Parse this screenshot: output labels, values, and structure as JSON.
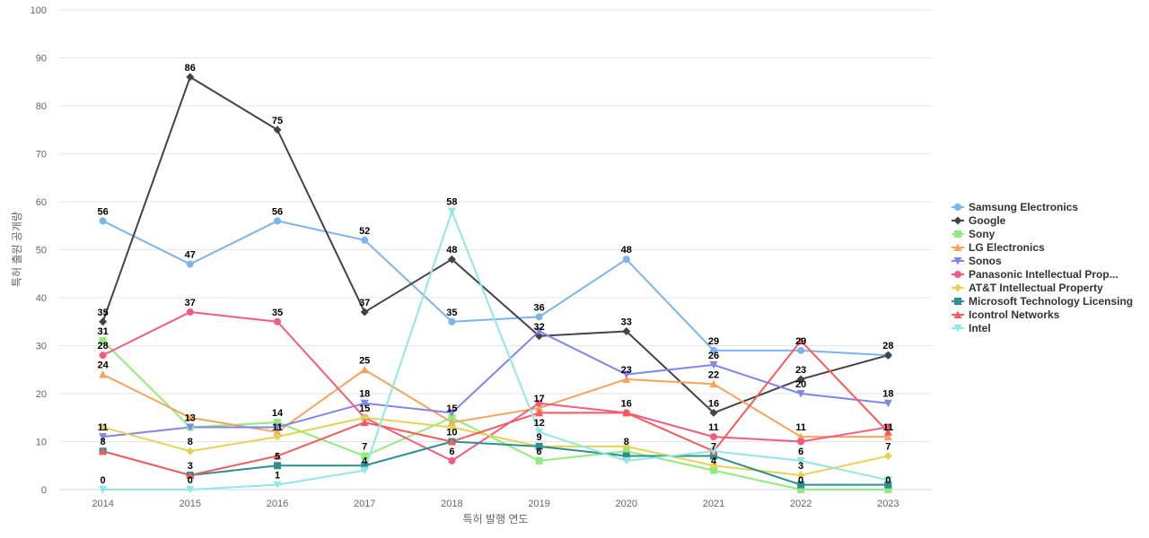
{
  "chart_data": {
    "type": "line",
    "title": "",
    "xlabel": "특허 발행 연도",
    "ylabel": "특허 출원 공개량",
    "ylim": [
      0,
      100
    ],
    "yticks": [
      0,
      10,
      20,
      30,
      40,
      50,
      60,
      70,
      80,
      90,
      100
    ],
    "categories": [
      "2014",
      "2015",
      "2016",
      "2017",
      "2018",
      "2019",
      "2020",
      "2021",
      "2022",
      "2023"
    ],
    "grid": true,
    "legend_position": "right",
    "series": [
      {
        "name": "Samsung Electronics",
        "color": "#7cb5ec",
        "marker": "circle",
        "values": [
          56,
          47,
          56,
          52,
          35,
          36,
          48,
          29,
          29,
          28
        ]
      },
      {
        "name": "Google",
        "color": "#434348",
        "marker": "diamond",
        "values": [
          35,
          86,
          75,
          37,
          48,
          32,
          33,
          16,
          23,
          28
        ]
      },
      {
        "name": "Sony",
        "color": "#90ed7d",
        "marker": "square",
        "values": [
          31,
          13,
          14,
          7,
          15,
          6,
          8,
          4,
          0,
          0
        ]
      },
      {
        "name": "LG Electronics",
        "color": "#f7a35c",
        "marker": "triangle",
        "values": [
          24,
          15,
          12,
          25,
          14,
          17,
          23,
          22,
          11,
          11
        ]
      },
      {
        "name": "Sonos",
        "color": "#8085e9",
        "marker": "triangle-down",
        "values": [
          11,
          13,
          13,
          18,
          16,
          33,
          24,
          26,
          20,
          18
        ]
      },
      {
        "name": "Panasonic Intellectual Prop...",
        "color": "#f15c80",
        "marker": "circle",
        "values": [
          28,
          37,
          35,
          15,
          6,
          18,
          16,
          11,
          10,
          13
        ]
      },
      {
        "name": "AT&T Intellectual Property",
        "color": "#e4d354",
        "marker": "diamond",
        "values": [
          13,
          8,
          11,
          15,
          13,
          9,
          9,
          5,
          3,
          7
        ]
      },
      {
        "name": "Microsoft Technology Licensing",
        "color": "#2b908f",
        "marker": "square",
        "values": [
          8,
          3,
          5,
          5,
          10,
          9,
          7,
          7,
          1,
          1
        ]
      },
      {
        "name": "Icontrol Networks",
        "color": "#f45b5b",
        "marker": "triangle",
        "values": [
          8,
          3,
          7,
          14,
          10,
          16,
          16,
          8,
          31,
          12
        ]
      },
      {
        "name": "Intel",
        "color": "#91e8e1",
        "marker": "triangle-down",
        "values": [
          0,
          0,
          1,
          4,
          58,
          12,
          6,
          8,
          6,
          2
        ]
      }
    ],
    "data_labels": [
      {
        "x": "2014",
        "labels": [
          "56",
          "35",
          "31",
          "28",
          "24",
          "11",
          "8",
          "0"
        ]
      },
      {
        "x": "2015",
        "labels": [
          "86",
          "47",
          "37",
          "13",
          "8",
          "3",
          "0"
        ]
      },
      {
        "x": "2016",
        "labels": [
          "75",
          "56",
          "35",
          "14",
          "11",
          "5",
          "1"
        ]
      },
      {
        "x": "2017",
        "labels": [
          "52",
          "37",
          "25",
          "18",
          "15",
          "7",
          "4"
        ]
      },
      {
        "x": "2018",
        "labels": [
          "58",
          "48",
          "35",
          "15",
          "10",
          "6"
        ]
      },
      {
        "x": "2019",
        "labels": [
          "36",
          "32",
          "17",
          "12",
          "9",
          "6"
        ]
      },
      {
        "x": "2020",
        "labels": [
          "48",
          "33",
          "23",
          "16",
          "8"
        ]
      },
      {
        "x": "2021",
        "labels": [
          "29",
          "26",
          "22",
          "16",
          "11",
          "7",
          "4"
        ]
      },
      {
        "x": "2022",
        "labels": [
          "29",
          "23",
          "20",
          "11",
          "6",
          "3",
          "0"
        ]
      },
      {
        "x": "2023",
        "labels": [
          "28",
          "18",
          "11",
          "7",
          "0"
        ]
      }
    ]
  }
}
